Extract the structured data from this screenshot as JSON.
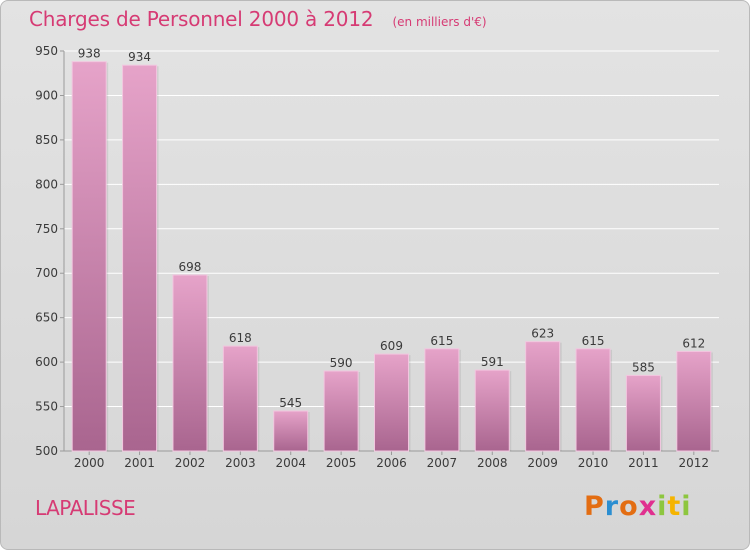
{
  "header": {
    "title": "Charges de Personnel 2000 à 2012",
    "subtitle": "(en milliers d'€)"
  },
  "location": {
    "name": "LAPALISSE"
  },
  "brand": {
    "logo_text": "Proxiti"
  },
  "colors": {
    "accent": "#d63b74",
    "bar_top": "#e6a3c9",
    "bar_bottom": "#a9658f",
    "grid": "#ffffff"
  },
  "chart_data": {
    "type": "bar",
    "categories": [
      "2000",
      "2001",
      "2002",
      "2003",
      "2004",
      "2005",
      "2006",
      "2007",
      "2008",
      "2009",
      "2010",
      "2011",
      "2012"
    ],
    "values": [
      938,
      934,
      698,
      618,
      545,
      590,
      609,
      615,
      591,
      623,
      615,
      585,
      612
    ],
    "ylim": [
      500,
      950
    ],
    "yticks": [
      500,
      550,
      600,
      650,
      700,
      750,
      800,
      850,
      900,
      950
    ],
    "grid": true,
    "title": "Charges de Personnel 2000 à 2012",
    "subtitle": "(en milliers d'€)",
    "xlabel": "",
    "ylabel": ""
  }
}
